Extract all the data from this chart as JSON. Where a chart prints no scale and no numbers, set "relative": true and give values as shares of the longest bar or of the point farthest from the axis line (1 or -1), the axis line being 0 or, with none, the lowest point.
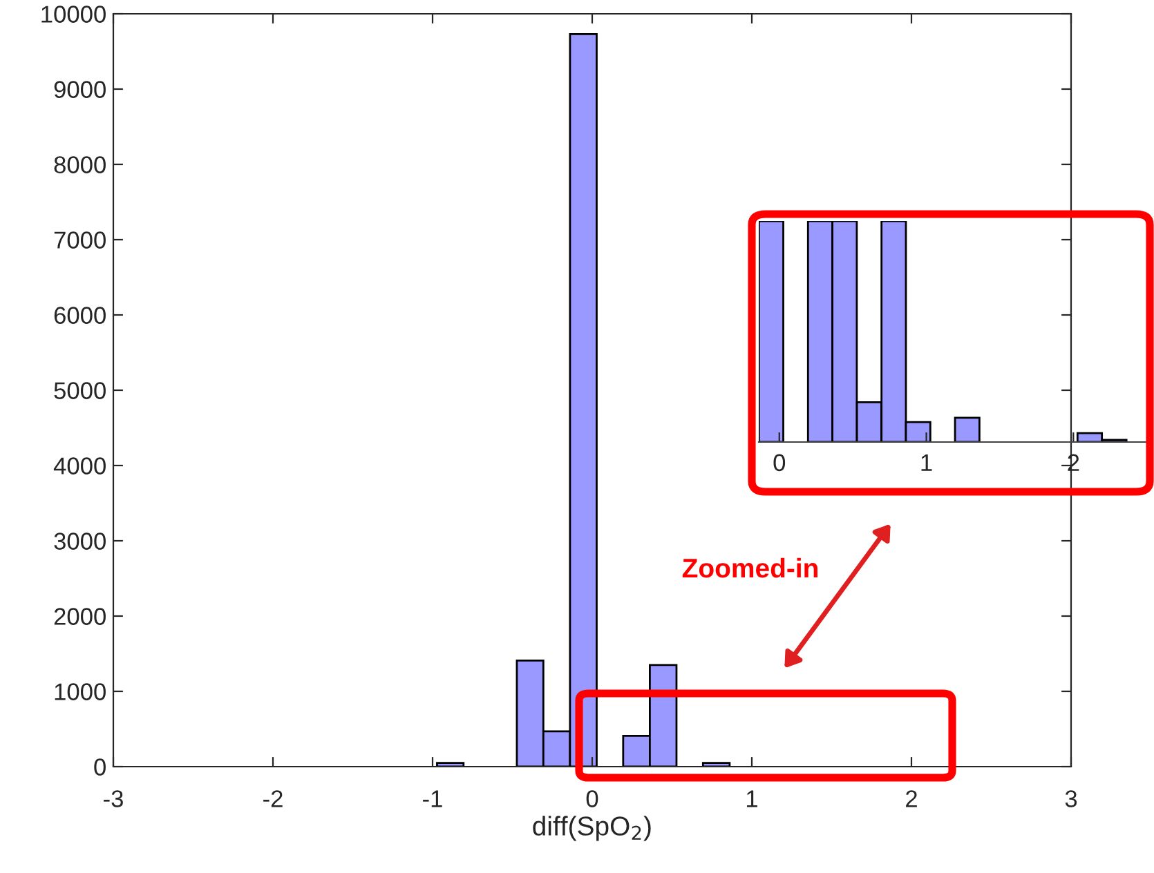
{
  "chart_data": [
    {
      "type": "histogram",
      "xlabel": "diff(SpO$_{2}$)",
      "color": "#9999ff",
      "bins": [
        -0.972,
        -0.806,
        -0.639,
        -0.472,
        -0.306,
        -0.139,
        0.028,
        0.194,
        0.361,
        0.528,
        0.694,
        0.861
      ],
      "values": [
        50,
        0,
        0,
        1410,
        470,
        9730,
        0,
        410,
        1350,
        0,
        50
      ],
      "xlim": [
        -3,
        3
      ],
      "ylim": [
        0,
        10000
      ],
      "xticks": [
        -3,
        -2,
        -1,
        0,
        1,
        2,
        3
      ],
      "yticks": [
        0,
        1000,
        2000,
        3000,
        4000,
        5000,
        6000,
        7000,
        8000,
        9000,
        10000
      ],
      "annotations": [
        "Zoomed-in"
      ]
    },
    {
      "type": "bar",
      "relative": true,
      "color": "#9999ff",
      "x": [
        -0.056,
        0.111,
        0.278,
        0.444,
        0.611,
        0.778,
        0.944,
        1.111,
        1.278,
        1.444,
        1.611,
        1.778,
        1.944,
        2.111,
        2.278
      ],
      "values": [
        1,
        null,
        1,
        1,
        0.18,
        1,
        0.09,
        null,
        0.11,
        null,
        null,
        null,
        null,
        0.04,
        0.01
      ],
      "xlim": [
        -0.14,
        2.52
      ],
      "xticks": [
        0,
        1,
        2
      ]
    }
  ]
}
